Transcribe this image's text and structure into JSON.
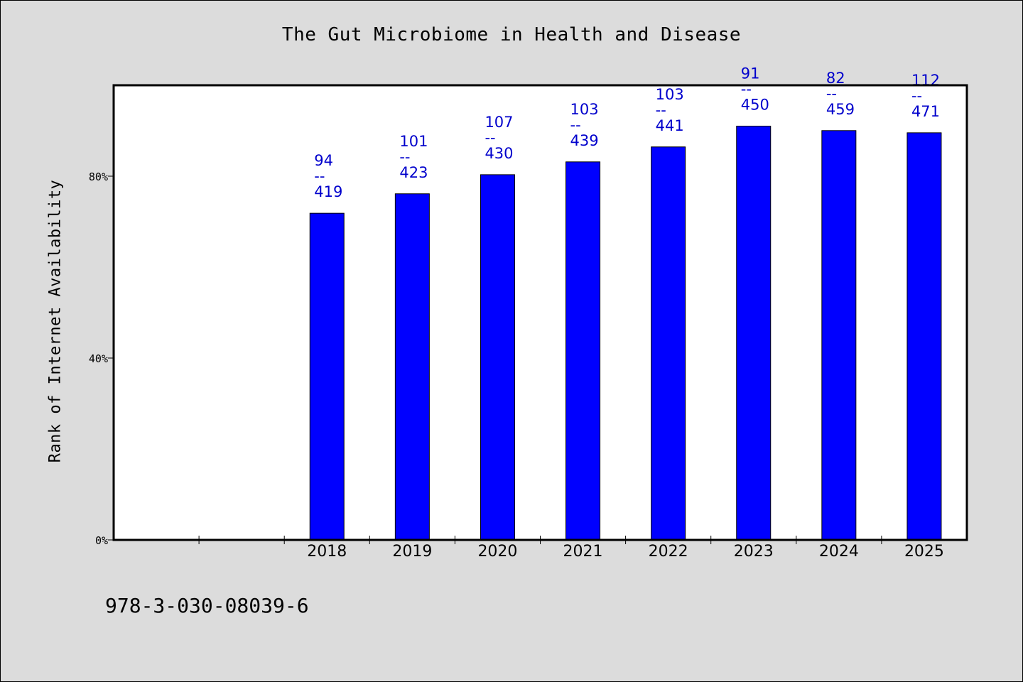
{
  "chart_data": {
    "type": "bar",
    "title": "The Gut Microbiome in Health and Disease",
    "xlabel": "",
    "ylabel": "Rank of Internet Availability",
    "categories": [
      "",
      "",
      "2018",
      "2019",
      "2020",
      "2021",
      "2022",
      "2023",
      "2024",
      "2025"
    ],
    "values": [
      null,
      null,
      0.7185,
      0.7613,
      0.8033,
      0.8315,
      0.8644,
      0.9101,
      0.9003,
      0.8955
    ],
    "data_labels": [
      null,
      null,
      {
        "top": "94",
        "sep": "--",
        "bottom": "419"
      },
      {
        "top": "101",
        "sep": "--",
        "bottom": "423"
      },
      {
        "top": "107",
        "sep": "--",
        "bottom": "430"
      },
      {
        "top": "103",
        "sep": "--",
        "bottom": "439"
      },
      {
        "top": "103",
        "sep": "--",
        "bottom": "441"
      },
      {
        "top": "91",
        "sep": "--",
        "bottom": "450"
      },
      {
        "top": "82",
        "sep": "--",
        "bottom": "459"
      },
      {
        "top": "112",
        "sep": "--",
        "bottom": "471"
      }
    ],
    "ylim": [
      0,
      1.0
    ],
    "yticks": [
      0,
      0.4,
      0.8
    ],
    "ytick_labels": [
      "0%",
      "40%",
      "80%"
    ],
    "grid": false,
    "colors": {
      "bar": "#0000ff",
      "label": "#0000cc",
      "axis": "#000000",
      "plot_bg": "#ffffff",
      "page_bg": "#dcdcdc"
    }
  },
  "footer": {
    "id": "978-3-030-08039-6"
  }
}
